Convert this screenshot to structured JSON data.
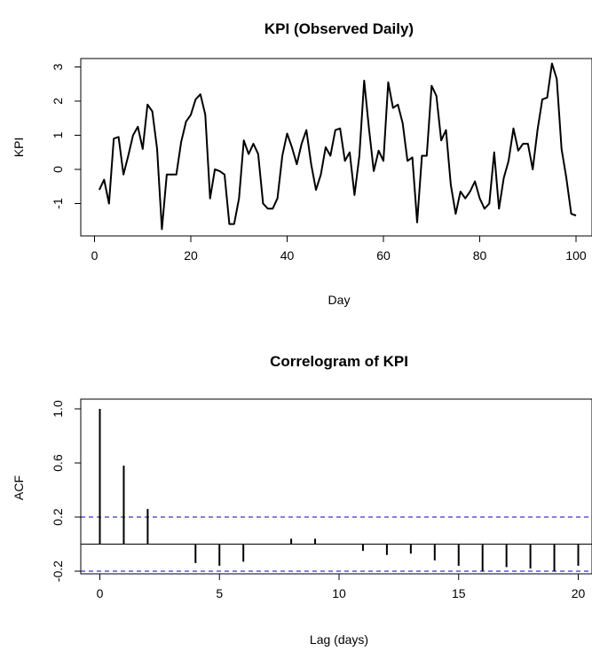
{
  "chart_data": [
    {
      "type": "line",
      "title": "KPI (Observed Daily)",
      "xlabel": "Day",
      "ylabel": "KPI",
      "xlim": [
        1,
        100
      ],
      "ylim": [
        -1.75,
        3.1
      ],
      "xticks": [
        "0",
        "20",
        "40",
        "60",
        "80",
        "100"
      ],
      "yticks": [
        "-1",
        "0",
        "1",
        "2",
        "3"
      ],
      "grid": false,
      "series": [
        {
          "x": [
            1,
            2,
            3,
            4,
            5,
            6,
            7,
            8,
            9,
            10,
            11,
            12,
            13,
            14,
            15,
            16,
            17,
            18,
            19,
            20,
            21,
            22,
            23,
            24,
            25,
            26,
            27,
            28,
            29,
            30,
            31,
            32,
            33,
            34,
            35,
            36,
            37,
            38,
            39,
            40,
            41,
            42,
            43,
            44,
            45,
            46,
            47,
            48,
            49,
            50,
            51,
            52,
            53,
            54,
            55,
            56,
            57,
            58,
            59,
            60,
            61,
            62,
            63,
            64,
            65,
            66,
            67,
            68,
            69,
            70,
            71,
            72,
            73,
            74,
            75,
            76,
            77,
            78,
            79,
            80,
            81,
            82,
            83,
            84,
            85,
            86,
            87,
            88,
            89,
            90,
            91,
            92,
            93,
            94,
            95,
            96,
            97,
            98,
            99,
            100
          ],
          "y": [
            -0.6,
            -0.3,
            -1.0,
            0.9,
            0.95,
            -0.15,
            0.4,
            1.0,
            1.25,
            0.6,
            1.9,
            1.7,
            0.6,
            -1.75,
            -0.15,
            -0.15,
            -0.15,
            0.8,
            1.4,
            1.6,
            2.05,
            2.2,
            1.6,
            -0.85,
            0.0,
            -0.05,
            -0.15,
            -1.6,
            -1.6,
            -0.85,
            0.85,
            0.45,
            0.75,
            0.45,
            -1.0,
            -1.15,
            -1.15,
            -0.85,
            0.4,
            1.05,
            0.65,
            0.15,
            0.75,
            1.15,
            0.15,
            -0.6,
            -0.15,
            0.65,
            0.4,
            1.15,
            1.2,
            0.25,
            0.5,
            -0.75,
            0.4,
            2.6,
            1.2,
            -0.05,
            0.55,
            0.25,
            2.55,
            1.8,
            1.9,
            1.35,
            0.25,
            0.35,
            -1.55,
            0.4,
            0.4,
            2.45,
            2.15,
            0.85,
            1.15,
            -0.45,
            -1.3,
            -0.65,
            -0.85,
            -0.65,
            -0.35,
            -0.85,
            -1.15,
            -1.0,
            0.5,
            -1.15,
            -0.25,
            0.25,
            1.2,
            0.55,
            0.75,
            0.75,
            0.0,
            1.15,
            2.05,
            2.1,
            3.1,
            2.65,
            0.6,
            -0.25,
            -1.3,
            -1.35
          ]
        }
      ]
    },
    {
      "type": "bar",
      "title": "Correlogram of KPI",
      "xlabel": "Lag (days)",
      "ylabel": "ACF",
      "xlim": [
        0,
        20
      ],
      "ylim": [
        -0.25,
        1.0
      ],
      "xticks": [
        "0",
        "5",
        "10",
        "15",
        "20"
      ],
      "yticks": [
        "-0.2",
        "0.2",
        "0.6",
        "1.0"
      ],
      "confidence_bound": 0.2,
      "confidence_color": "#0000cc",
      "grid": false,
      "lags": [
        0,
        1,
        2,
        3,
        4,
        5,
        6,
        7,
        8,
        9,
        10,
        11,
        12,
        13,
        14,
        15,
        16,
        17,
        18,
        19,
        20
      ],
      "values": [
        1.0,
        0.58,
        0.26,
        0.0,
        -0.14,
        -0.16,
        -0.13,
        0.0,
        0.04,
        0.04,
        0.0,
        -0.05,
        -0.08,
        -0.07,
        -0.12,
        -0.16,
        -0.2,
        -0.17,
        -0.18,
        -0.2,
        -0.16
      ]
    }
  ]
}
